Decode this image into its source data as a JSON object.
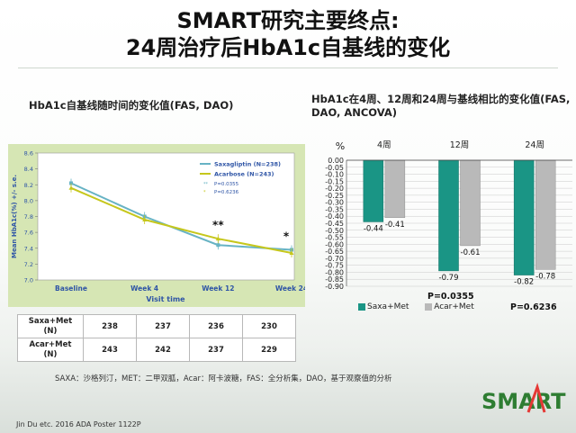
{
  "title": {
    "line1": "SMART研究主要终点:",
    "line2": "24周治疗后HbA1c自基线的变化"
  },
  "left_heading": "HbA1c自基线随时间的变化值(FAS, DAO)",
  "right_heading": "HbA1c在4周、12周和24周与基线相比的变化值(FAS, DAO, ANCOVA)",
  "colors": {
    "saxa_line": "#67b3c4",
    "acar_line": "#c6c71c",
    "saxa_bar": "#1a9585",
    "acar_bar": "#b9b9b9",
    "panel_bg": "#d6e6b4",
    "axis_text": "#2f55a6"
  },
  "chart_data": [
    {
      "type": "line",
      "xlabel": "Visit time",
      "ylabel": "Mean HbA1c(%) +/- s.e.",
      "categories": [
        "Baseline",
        "Week 4",
        "Week 12",
        "Week 24"
      ],
      "ylim": [
        7.0,
        8.6
      ],
      "yticks": [
        "8.6",
        "8.4",
        "8.2",
        "8.0",
        "7.8",
        "7.6",
        "7.4",
        "7.2",
        "7.0"
      ],
      "series": [
        {
          "name": "Saxagliptin (N=238)",
          "values": [
            8.22,
            7.8,
            7.44,
            7.38
          ]
        },
        {
          "name": "Acarbose (N=243)",
          "values": [
            8.16,
            7.76,
            7.52,
            7.34
          ]
        }
      ],
      "legend_notes": [
        "P=0.0355",
        "P=0.6236"
      ],
      "annotations": [
        {
          "category": "Week 12",
          "text": "**"
        },
        {
          "category": "Week 24",
          "text": "*"
        }
      ],
      "legend": "top-right"
    },
    {
      "type": "bar",
      "ylabel": "%",
      "categories": [
        "4周",
        "12周",
        "24周"
      ],
      "ylim": [
        -0.9,
        0.0
      ],
      "yticks": [
        "0.00",
        "-0.05",
        "-0.10",
        "-0.15",
        "-0.20",
        "-0.25",
        "-0.30",
        "-0.35",
        "-0.40",
        "-0.45",
        "-0.50",
        "-0.55",
        "-0.60",
        "-0.65",
        "-0.70",
        "-0.75",
        "-0.80",
        "-0.85",
        "-0.90"
      ],
      "series": [
        {
          "name": "Saxa+Met",
          "values": [
            -0.44,
            -0.79,
            -0.82
          ],
          "labels": [
            "-0.44",
            "-0.79",
            "-0.82"
          ]
        },
        {
          "name": "Acar+Met",
          "values": [
            -0.41,
            -0.61,
            -0.78
          ],
          "labels": [
            "-0.41",
            "-0.61",
            "-0.78"
          ]
        }
      ],
      "p_values": [
        "P=0.0355",
        "P=0.6236"
      ],
      "legend": "bottom"
    }
  ],
  "n_table": {
    "rows": [
      {
        "label": "Saxa+Met\n(N)",
        "values": [
          "238",
          "237",
          "236",
          "230"
        ]
      },
      {
        "label": "Acar+Met\n(N)",
        "values": [
          "243",
          "242",
          "237",
          "229"
        ]
      }
    ]
  },
  "footnote": "SAXA：沙格列汀，MET：二甲双胍，Acar：阿卡波糖，FAS：全分析集，DAO，基于观察值的分析",
  "source": "Jin Du etc. 2016 ADA Poster 1122P",
  "logo_text": "SMART"
}
